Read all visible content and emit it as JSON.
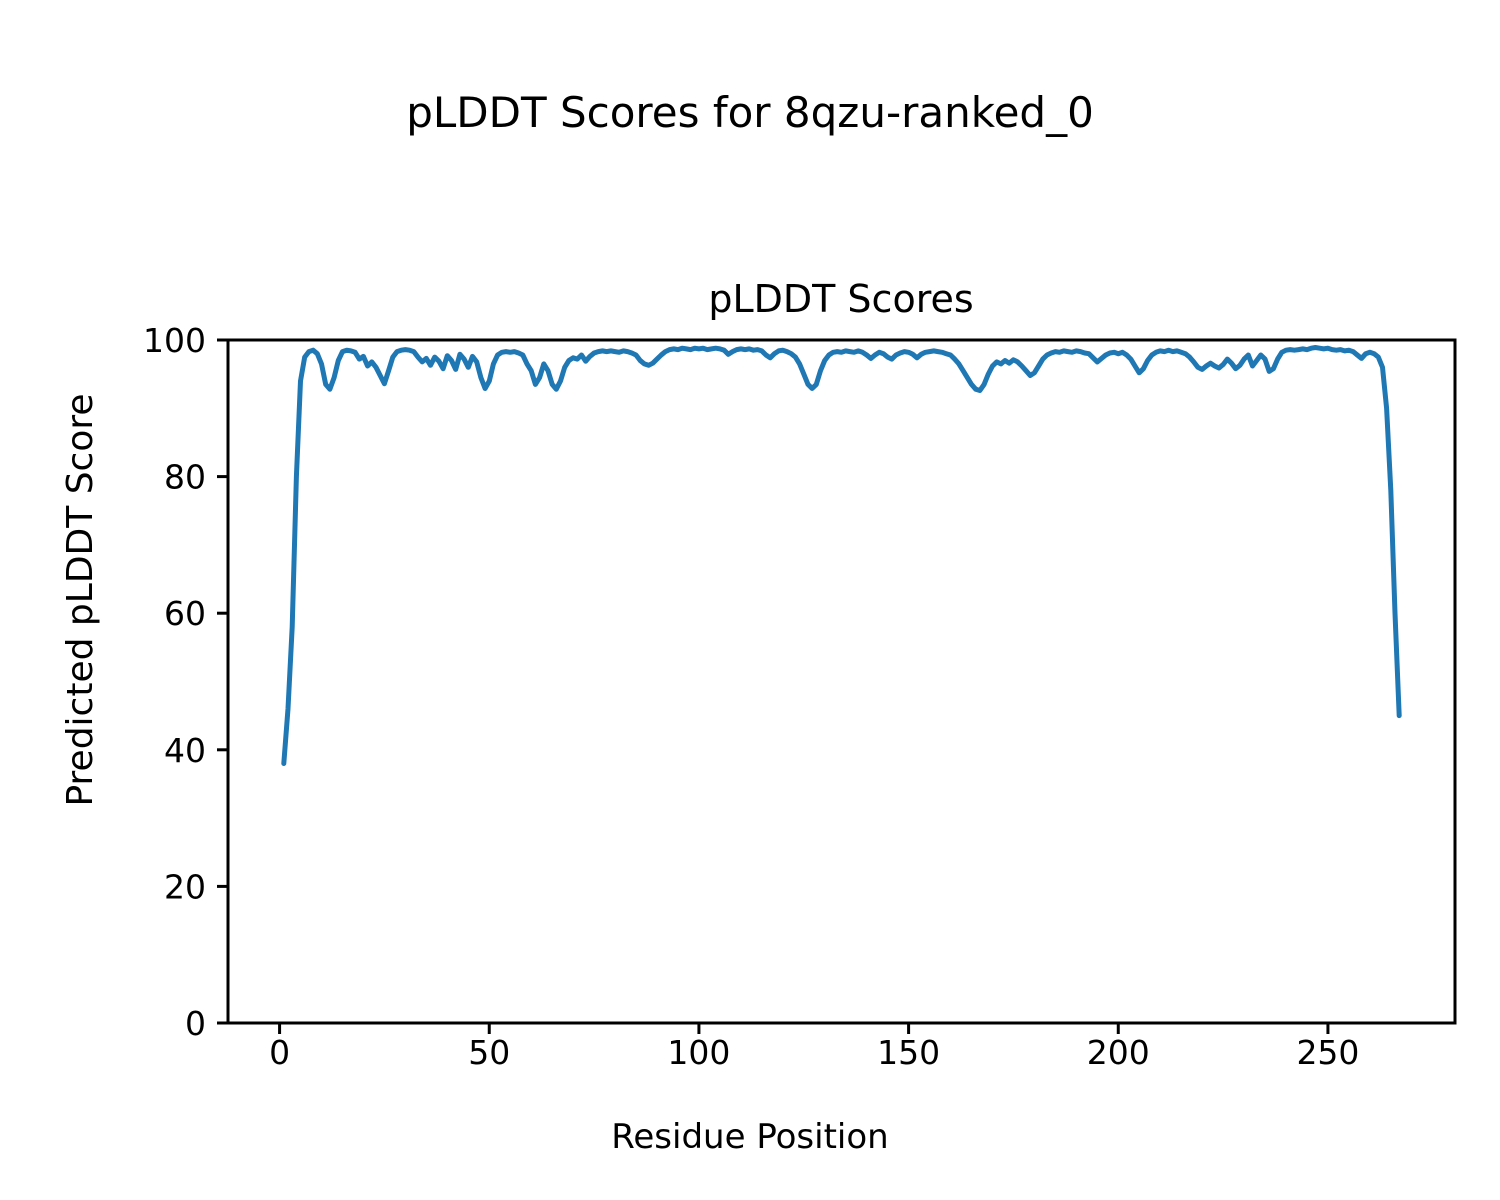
{
  "figure": {
    "suptitle": "pLDDT Scores for 8qzu-ranked_0",
    "background_color": "#ffffff"
  },
  "chart_data": {
    "type": "line",
    "title": "pLDDT Scores",
    "xlabel": "Residue Position",
    "ylabel": "Predicted pLDDT Score",
    "legend": false,
    "grid": false,
    "xlim": [
      -12.3,
      280.3
    ],
    "ylim": [
      0,
      100
    ],
    "x_ticks": [
      0,
      50,
      100,
      150,
      200,
      250
    ],
    "y_ticks": [
      0,
      20,
      40,
      60,
      80,
      100
    ],
    "axis_color": "#000000",
    "text_color": "#000000",
    "x_start": 1,
    "x_step": 1,
    "series": [
      {
        "name": "pLDDT",
        "color": "#1f77b4",
        "values": [
          38.0,
          46.0,
          58.0,
          80.0,
          94.0,
          97.5,
          98.3,
          98.5,
          98.0,
          96.5,
          93.5,
          92.8,
          94.5,
          97.0,
          98.3,
          98.5,
          98.4,
          98.2,
          97.2,
          97.6,
          96.2,
          96.8,
          96.0,
          94.8,
          93.6,
          95.5,
          97.5,
          98.3,
          98.5,
          98.6,
          98.5,
          98.3,
          97.5,
          96.8,
          97.3,
          96.3,
          97.5,
          96.9,
          95.8,
          97.7,
          97.0,
          95.7,
          97.9,
          97.2,
          96.0,
          97.6,
          96.8,
          94.5,
          92.9,
          94.0,
          96.5,
          97.8,
          98.2,
          98.3,
          98.2,
          98.3,
          98.1,
          97.8,
          96.5,
          95.5,
          93.5,
          94.5,
          96.5,
          95.5,
          93.5,
          92.8,
          94.0,
          96.0,
          97.0,
          97.4,
          97.2,
          97.8,
          96.9,
          97.6,
          98.1,
          98.3,
          98.4,
          98.3,
          98.4,
          98.3,
          98.2,
          98.4,
          98.3,
          98.1,
          97.8,
          97.0,
          96.5,
          96.3,
          96.6,
          97.2,
          97.8,
          98.3,
          98.6,
          98.7,
          98.6,
          98.8,
          98.7,
          98.6,
          98.8,
          98.7,
          98.8,
          98.6,
          98.7,
          98.8,
          98.7,
          98.5,
          97.9,
          98.3,
          98.6,
          98.7,
          98.6,
          98.7,
          98.5,
          98.6,
          98.4,
          97.8,
          97.4,
          98.0,
          98.4,
          98.5,
          98.3,
          98.0,
          97.5,
          96.5,
          95.0,
          93.5,
          92.9,
          93.5,
          95.5,
          97.0,
          97.8,
          98.2,
          98.3,
          98.2,
          98.4,
          98.3,
          98.2,
          98.4,
          98.2,
          97.8,
          97.3,
          97.8,
          98.2,
          98.0,
          97.5,
          97.2,
          97.8,
          98.1,
          98.3,
          98.2,
          97.9,
          97.4,
          97.9,
          98.2,
          98.3,
          98.4,
          98.3,
          98.2,
          98.0,
          97.8,
          97.2,
          96.5,
          95.5,
          94.5,
          93.5,
          92.8,
          92.6,
          93.5,
          95.0,
          96.2,
          96.8,
          96.5,
          97.0,
          96.6,
          97.1,
          96.8,
          96.2,
          95.5,
          94.8,
          95.2,
          96.2,
          97.2,
          97.8,
          98.1,
          98.3,
          98.2,
          98.4,
          98.3,
          98.2,
          98.4,
          98.3,
          98.1,
          98.0,
          97.4,
          96.8,
          97.3,
          97.8,
          98.1,
          98.2,
          98.0,
          98.2,
          97.8,
          97.2,
          96.2,
          95.2,
          95.8,
          97.0,
          97.8,
          98.2,
          98.4,
          98.3,
          98.5,
          98.3,
          98.4,
          98.2,
          98.0,
          97.5,
          96.8,
          96.0,
          95.7,
          96.2,
          96.6,
          96.2,
          95.9,
          96.4,
          97.2,
          96.6,
          95.8,
          96.3,
          97.2,
          97.8,
          96.2,
          97.0,
          97.8,
          97.2,
          95.4,
          95.8,
          97.2,
          98.2,
          98.5,
          98.6,
          98.5,
          98.6,
          98.7,
          98.6,
          98.8,
          98.9,
          98.8,
          98.7,
          98.8,
          98.6,
          98.5,
          98.6,
          98.4,
          98.5,
          98.3,
          97.8,
          97.3,
          98.0,
          98.2,
          98.0,
          97.5,
          96.0,
          90.0,
          78.0,
          60.0,
          45.0
        ]
      }
    ]
  }
}
